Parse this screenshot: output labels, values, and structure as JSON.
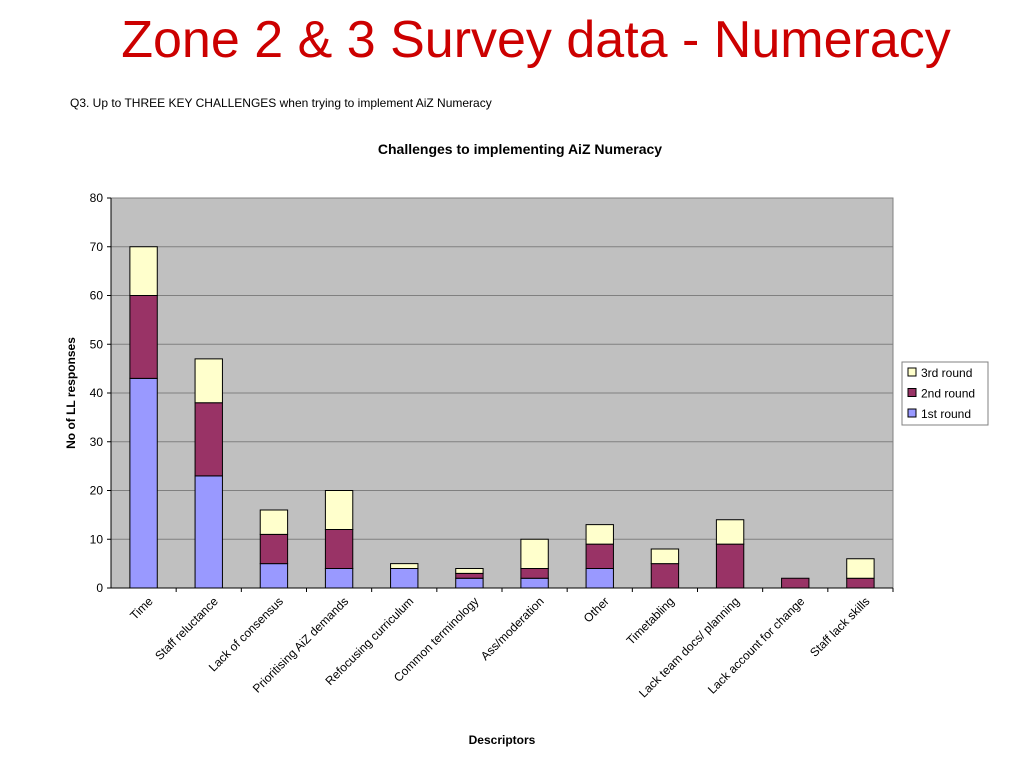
{
  "slide": {
    "title": "Zone 2 & 3 Survey data - Numeracy",
    "question": "Q3. Up to THREE KEY CHALLENGES when trying to implement AiZ Numeracy"
  },
  "colors": {
    "title": "#cc0000",
    "plot_background": "#c0c0c0",
    "gridline": "#808080",
    "series_1st": "#9999ff",
    "series_2nd": "#993366",
    "series_3rd": "#ffffcc"
  },
  "chart_data": {
    "type": "bar",
    "stacked": true,
    "title": "Challenges to implementing AiZ Numeracy",
    "xlabel": "Descriptors",
    "ylabel": "No of LL responses",
    "ylim": [
      0,
      80
    ],
    "yticks": [
      0,
      10,
      20,
      30,
      40,
      50,
      60,
      70,
      80
    ],
    "grid": true,
    "legend_position": "right",
    "categories": [
      "Time",
      "Staff reluctance",
      "Lack of consensus",
      "Prioritising AiZ demands",
      "Refocusing curriculum",
      "Common terminology",
      "Ass/moderation",
      "Other",
      "Timetabling",
      "Lack team docs/ planning",
      "Lack account for change",
      "Staff lack skills"
    ],
    "series": [
      {
        "name": "1st round",
        "color": "#9999ff",
        "values": [
          43,
          23,
          5,
          4,
          4,
          2,
          2,
          4,
          0,
          0,
          0,
          0
        ]
      },
      {
        "name": "2nd round",
        "color": "#993366",
        "values": [
          17,
          15,
          6,
          8,
          0,
          1,
          2,
          5,
          5,
          9,
          2,
          2
        ]
      },
      {
        "name": "3rd round",
        "color": "#ffffcc",
        "values": [
          10,
          9,
          5,
          8,
          1,
          1,
          6,
          4,
          3,
          5,
          0,
          4
        ]
      }
    ],
    "legend_order": [
      "3rd round",
      "2nd round",
      "1st round"
    ]
  }
}
